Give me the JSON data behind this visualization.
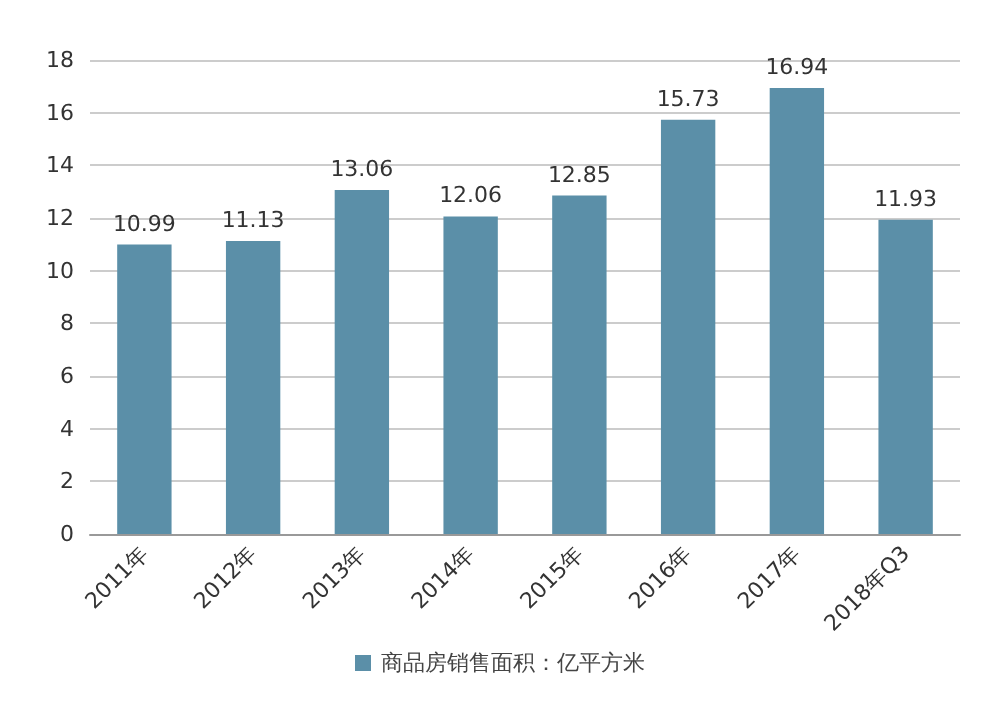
{
  "chart_data": {
    "type": "bar",
    "categories": [
      "2011年",
      "2012年",
      "2013年",
      "2014年",
      "2015年",
      "2016年",
      "2017年",
      "2018年Q3"
    ],
    "series": [
      {
        "name": "商品房销售面积：亿平方米",
        "color": "#5b8fa8",
        "values": [
          10.99,
          11.13,
          13.06,
          12.06,
          12.85,
          15.73,
          16.94,
          11.93
        ]
      }
    ],
    "ylim": [
      0,
      18
    ],
    "yticks": [
      0,
      2,
      4,
      6,
      8,
      10,
      12,
      14,
      16,
      18
    ],
    "grid": "y",
    "legend": "bottom",
    "data_labels": true
  }
}
